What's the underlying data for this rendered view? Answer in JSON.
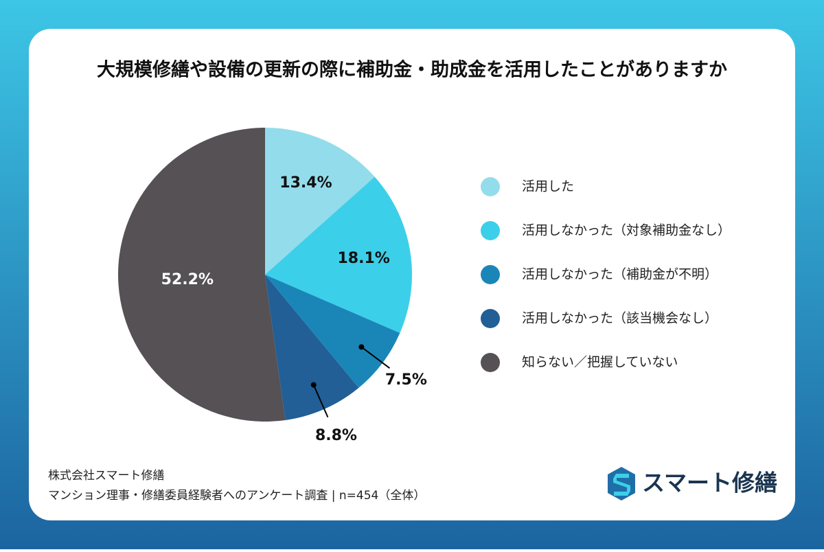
{
  "chart_data": {
    "type": "pie",
    "title": "大規模修繕や設備の更新の際に補助金・助成金を活用したことがありますか",
    "categories": [
      "活用した",
      "活用しなかった（対象補助金なし）",
      "活用しなかった（補助金が不明）",
      "活用しなかった（該当機会なし）",
      "知らない／把握していない"
    ],
    "values": [
      13.4,
      18.1,
      7.5,
      8.8,
      52.2
    ],
    "value_labels": [
      "13.4%",
      "18.1%",
      "7.5%",
      "8.8%",
      "52.2%"
    ],
    "colors": [
      "#93dcec",
      "#3ccfe9",
      "#1a86b8",
      "#215f96",
      "#555155"
    ],
    "legend": "right",
    "source": [
      "株式会社スマート修繕",
      "マンション理事・修繕委員経験者へのアンケート調査 | n=454（全体）"
    ],
    "logo_text": "スマート修繕"
  }
}
